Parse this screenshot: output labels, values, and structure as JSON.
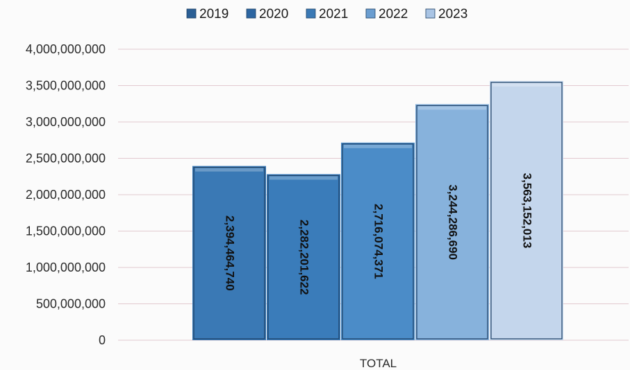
{
  "chart_data": {
    "type": "bar",
    "categories": [
      "TOTAL"
    ],
    "series": [
      {
        "name": "2019",
        "values": [
          2394464740
        ],
        "label": "2,394,464,740",
        "color": "#3a79b5",
        "legend_color": "#2b5f95"
      },
      {
        "name": "2020",
        "values": [
          2282201622
        ],
        "label": "2,282,201,622",
        "color": "#3a7cba",
        "legend_color": "#2d66a2"
      },
      {
        "name": "2021",
        "values": [
          2716074371
        ],
        "label": "2,716,074,371",
        "color": "#4b8cc8",
        "legend_color": "#3a79b5"
      },
      {
        "name": "2022",
        "values": [
          3244286690
        ],
        "label": "3,244,286,690",
        "color": "#87b2dc",
        "legend_color": "#6a9dd0"
      },
      {
        "name": "2023",
        "values": [
          3563152013
        ],
        "label": "3,563,152,013",
        "color": "#c4d6ec",
        "legend_color": "#a9c4e4"
      }
    ],
    "title": "",
    "xlabel": "",
    "ylabel": "",
    "ylim": [
      0,
      4000000000
    ],
    "yticks": [
      0,
      500000000,
      1000000000,
      1500000000,
      2000000000,
      2500000000,
      3000000000,
      3500000000,
      4000000000
    ],
    "ytick_labels": [
      "0",
      "500,000,000",
      "1,000,000,000",
      "1,500,000,000",
      "2,000,000,000",
      "2,500,000,000",
      "3,000,000,000",
      "3,500,000,000",
      "4,000,000,000"
    ],
    "grid": true,
    "legend": "top-center",
    "data_labels": "inside-vertical"
  }
}
